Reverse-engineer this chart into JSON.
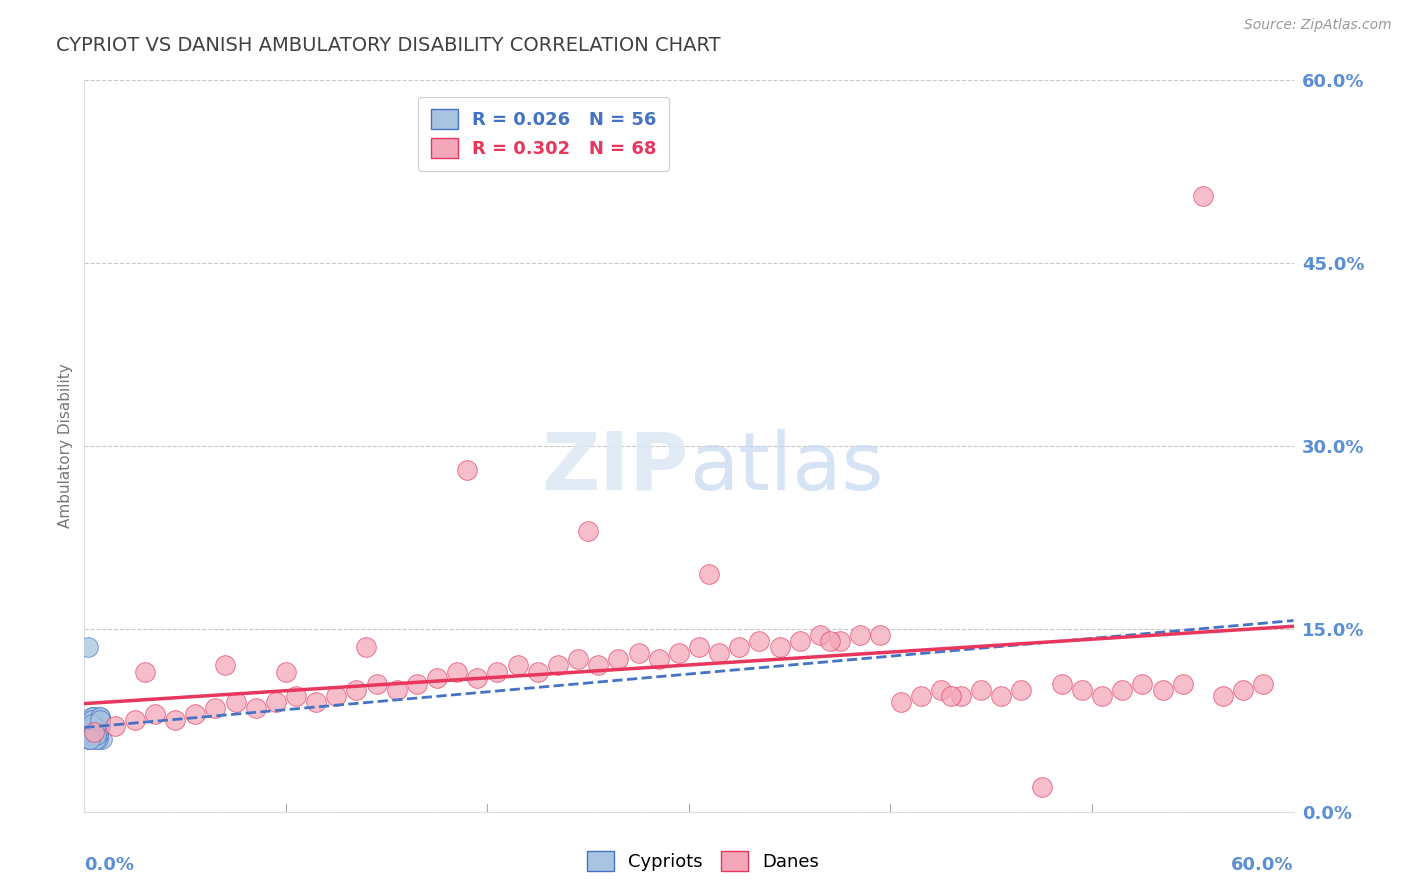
{
  "title": "CYPRIOT VS DANISH AMBULATORY DISABILITY CORRELATION CHART",
  "source": "Source: ZipAtlas.com",
  "ylabel": "Ambulatory Disability",
  "ymin": 0.0,
  "ymax": 60.0,
  "xmin": 0.0,
  "xmax": 60.0,
  "yticks": [
    0,
    15,
    30,
    45,
    60
  ],
  "cypriot_R": 0.026,
  "cypriot_N": 56,
  "dane_R": 0.302,
  "dane_N": 68,
  "cypriot_color": "#a8c4e0",
  "cypriot_edge_color": "#4472c4",
  "dane_color": "#f4a7b9",
  "dane_edge_color": "#e8365d",
  "cypriot_line_color": "#4472c4",
  "dane_line_color": "#e8365d",
  "title_color": "#404040",
  "tick_color": "#5a8fd4",
  "watermark_color": "#d0dff0",
  "background_color": "#ffffff",
  "grid_color": "#c8c8c8",
  "cypriot_scatter_x": [
    0.3,
    0.5,
    0.7,
    0.4,
    0.6,
    0.8,
    0.3,
    0.5,
    0.7,
    0.4,
    0.6,
    0.8,
    0.3,
    0.5,
    0.9,
    0.4,
    0.6,
    0.8,
    0.3,
    0.5,
    0.7,
    0.4,
    0.6,
    0.8,
    0.3,
    0.5,
    0.7,
    0.4,
    0.6,
    0.8,
    0.2,
    0.5,
    0.7,
    0.4,
    0.6,
    0.8,
    0.3,
    0.5,
    0.7,
    0.4,
    0.6,
    0.8,
    0.3,
    0.5,
    0.7,
    0.4,
    0.6,
    0.8,
    0.3,
    0.5,
    0.7,
    0.4,
    0.6,
    0.8,
    0.3,
    0.2
  ],
  "cypriot_scatter_y": [
    6.5,
    7.0,
    6.8,
    7.2,
    6.3,
    7.5,
    6.0,
    7.8,
    6.5,
    7.0,
    6.8,
    7.2,
    6.3,
    7.5,
    6.0,
    7.8,
    6.5,
    7.0,
    6.8,
    7.2,
    6.3,
    7.5,
    6.0,
    7.8,
    6.5,
    7.0,
    6.8,
    7.2,
    6.3,
    7.5,
    6.0,
    7.8,
    6.5,
    7.0,
    6.8,
    7.2,
    6.3,
    7.5,
    6.0,
    7.8,
    6.5,
    7.0,
    6.8,
    7.2,
    6.3,
    7.5,
    6.0,
    7.8,
    6.5,
    7.0,
    6.8,
    7.2,
    6.3,
    7.5,
    6.0,
    13.5
  ],
  "dane_scatter_x": [
    0.5,
    1.5,
    2.5,
    3.5,
    4.5,
    5.5,
    6.5,
    7.5,
    8.5,
    9.5,
    10.5,
    11.5,
    12.5,
    13.5,
    14.5,
    15.5,
    16.5,
    17.5,
    18.5,
    19.5,
    20.5,
    21.5,
    22.5,
    23.5,
    24.5,
    25.5,
    26.5,
    27.5,
    28.5,
    29.5,
    30.5,
    31.5,
    32.5,
    33.5,
    34.5,
    35.5,
    36.5,
    37.5,
    38.5,
    39.5,
    40.5,
    41.5,
    42.5,
    43.5,
    44.5,
    45.5,
    46.5,
    47.5,
    48.5,
    49.5,
    50.5,
    51.5,
    52.5,
    53.5,
    54.5,
    55.5,
    56.5,
    57.5,
    58.5,
    3.0,
    7.0,
    10.0,
    14.0,
    19.0,
    25.0,
    31.0,
    37.0,
    43.0
  ],
  "dane_scatter_y": [
    6.5,
    7.0,
    7.5,
    8.0,
    7.5,
    8.0,
    8.5,
    9.0,
    8.5,
    9.0,
    9.5,
    9.0,
    9.5,
    10.0,
    10.5,
    10.0,
    10.5,
    11.0,
    11.5,
    11.0,
    11.5,
    12.0,
    11.5,
    12.0,
    12.5,
    12.0,
    12.5,
    13.0,
    12.5,
    13.0,
    13.5,
    13.0,
    13.5,
    14.0,
    13.5,
    14.0,
    14.5,
    14.0,
    14.5,
    14.5,
    9.0,
    9.5,
    10.0,
    9.5,
    10.0,
    9.5,
    10.0,
    2.0,
    10.5,
    10.0,
    9.5,
    10.0,
    10.5,
    10.0,
    10.5,
    50.5,
    9.5,
    10.0,
    10.5,
    11.5,
    12.0,
    11.5,
    13.5,
    28.0,
    23.0,
    19.5,
    14.0,
    9.5
  ]
}
